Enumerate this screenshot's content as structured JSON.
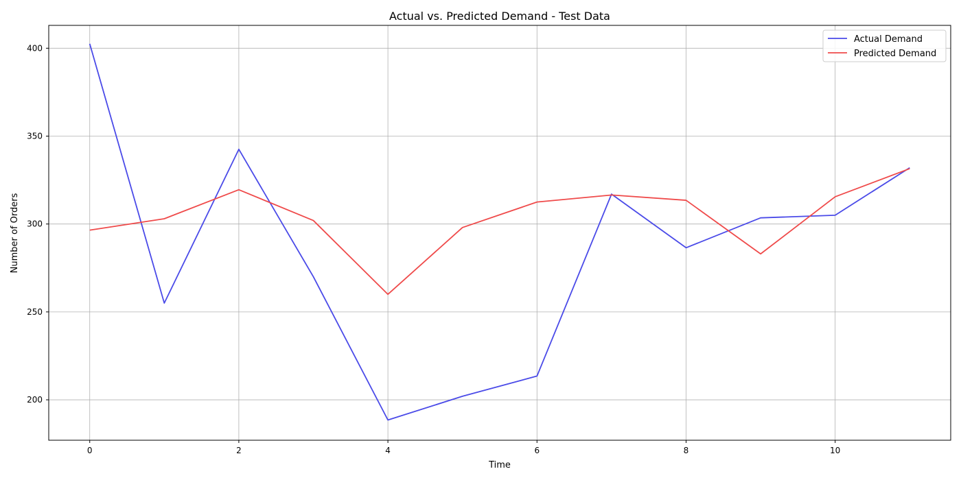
{
  "chart_data": {
    "type": "line",
    "title": "Actual vs. Predicted Demand - Test Data",
    "xlabel": "Time",
    "ylabel": "Number of Orders",
    "xlim": [
      -0.55,
      11.55
    ],
    "ylim": [
      177,
      413
    ],
    "xticks": [
      0,
      2,
      4,
      6,
      8,
      10
    ],
    "yticks": [
      200,
      250,
      300,
      350,
      400
    ],
    "grid": true,
    "legend": "top-right",
    "x": [
      0,
      1,
      2,
      3,
      4,
      5,
      6,
      7,
      8,
      9,
      10,
      11
    ],
    "series": [
      {
        "name": "Actual Demand",
        "color": "#4a4ae8",
        "values": [
          402.5,
          255,
          342.5,
          270,
          188.5,
          202,
          213.5,
          317,
          286.5,
          303.5,
          305,
          332
        ]
      },
      {
        "name": "Predicted Demand",
        "color": "#ef4a4a",
        "values": [
          296.5,
          303,
          319.5,
          302,
          260,
          298,
          312.5,
          316.5,
          313.5,
          283,
          315.5,
          331.5
        ]
      }
    ]
  }
}
